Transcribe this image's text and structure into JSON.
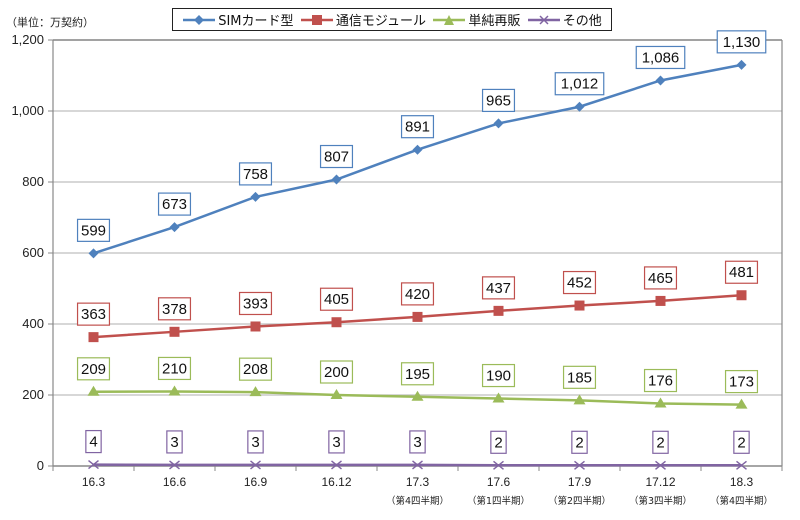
{
  "chart_data": {
    "type": "line",
    "title": "",
    "unit_label": "（単位：万契約）",
    "xlabel": "",
    "ylabel": "",
    "categories": [
      "16.3",
      "16.6",
      "16.9",
      "16.12",
      "17.3",
      "17.6",
      "17.9",
      "17.12",
      "18.3"
    ],
    "category_sublabels": [
      "",
      "",
      "",
      "",
      "（第4四半期）",
      "（第1四半期）",
      "（第2四半期）",
      "（第3四半期）",
      "（第4四半期）"
    ],
    "ylim": [
      0,
      1200
    ],
    "yticks": [
      0,
      200,
      400,
      600,
      800,
      1000,
      1200
    ],
    "ytick_labels": [
      "0",
      "200",
      "400",
      "600",
      "800",
      "1,000",
      "1,200"
    ],
    "grid": true,
    "legend_position": "top",
    "series": [
      {
        "name": "SIMカード型",
        "color": "#4f81bd",
        "marker": "diamond",
        "values": [
          599,
          673,
          758,
          807,
          891,
          965,
          1012,
          1086,
          1130
        ],
        "labels": [
          "599",
          "673",
          "758",
          "807",
          "891",
          "965",
          "1,012",
          "1,086",
          "1,130"
        ]
      },
      {
        "name": "通信モジュール",
        "color": "#c0504d",
        "marker": "square",
        "values": [
          363,
          378,
          393,
          405,
          420,
          437,
          452,
          465,
          481
        ],
        "labels": [
          "363",
          "378",
          "393",
          "405",
          "420",
          "437",
          "452",
          "465",
          "481"
        ]
      },
      {
        "name": "単純再販",
        "color": "#9bbb59",
        "marker": "triangle",
        "values": [
          209,
          210,
          208,
          200,
          195,
          190,
          185,
          176,
          173
        ],
        "labels": [
          "209",
          "210",
          "208",
          "200",
          "195",
          "190",
          "185",
          "176",
          "173"
        ]
      },
      {
        "name": "その他",
        "color": "#8064a2",
        "marker": "x",
        "values": [
          4,
          3,
          3,
          3,
          3,
          2,
          2,
          2,
          2
        ],
        "labels": [
          "4",
          "3",
          "3",
          "3",
          "3",
          "2",
          "2",
          "2",
          "2"
        ]
      }
    ]
  }
}
